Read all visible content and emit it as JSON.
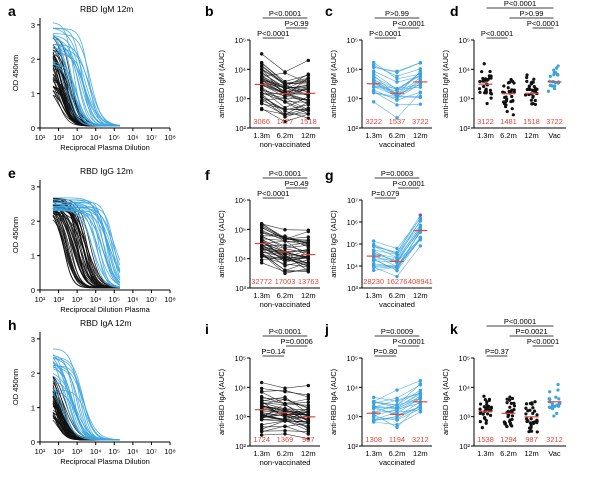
{
  "colors": {
    "non_vaccinated": "#111111",
    "vaccinated": "#3ba3dd",
    "vaccinated_highlight": "#7b4fb7",
    "median_text": "#e0483e"
  },
  "chart_data": [
    {
      "id": "a",
      "panel_label": "a",
      "type": "line",
      "title": "RBD IgM 12m",
      "xlabel": "Reciprocal Plasma Dilution",
      "ylabel": "OD 450nm",
      "xscale": "log",
      "xlim": [
        10,
        100000000
      ],
      "ylim": [
        0,
        3.2
      ],
      "x_ticks": [
        "10¹",
        "10²",
        "10³",
        "10⁴",
        "10⁵",
        "10⁶",
        "10⁷",
        "10⁸"
      ],
      "y_ticks": [
        "0",
        "1",
        "2",
        "3"
      ],
      "curve_groups": [
        {
          "group": "non_vaccinated",
          "count": 42,
          "ec50_range": [
            80,
            600
          ],
          "top_range": [
            1.0,
            2.9
          ]
        },
        {
          "group": "vaccinated",
          "count": 22,
          "ec50_range": [
            250,
            6000
          ],
          "top_range": [
            1.6,
            3.1
          ]
        }
      ]
    },
    {
      "id": "b",
      "panel_label": "b",
      "type": "scatter",
      "ylabel": "anti-RBD IgM (AUC)",
      "yscale": "log",
      "ylim": [
        100,
        100000
      ],
      "y_ticks": [
        "10²",
        "10³",
        "10⁴",
        "10⁵"
      ],
      "categories": [
        "1.3m",
        "6.2m",
        "12m"
      ],
      "group_label": "non-vaccinated",
      "paired": true,
      "color_group": "non_vaccinated",
      "n": 42,
      "medians": [
        3066,
        1477,
        1518
      ],
      "median_labels": [
        "3066",
        "1477",
        "1518"
      ],
      "comparisons": [
        {
          "from": 0,
          "to": 1,
          "label": "P<0.0001"
        },
        {
          "from": 1,
          "to": 2,
          "label": "P>0.99"
        },
        {
          "from": 0,
          "to": 2,
          "label": "P<0.0001"
        }
      ]
    },
    {
      "id": "c",
      "panel_label": "c",
      "type": "scatter",
      "ylabel": "anti-RBD IgM (AUC)",
      "yscale": "log",
      "ylim": [
        100,
        100000
      ],
      "y_ticks": [
        "10²",
        "10³",
        "10⁴",
        "10⁵"
      ],
      "categories": [
        "1.3m",
        "6.2m",
        "12m"
      ],
      "group_label": "vaccinated",
      "paired": true,
      "color_group": "vaccinated",
      "n": 22,
      "medians": [
        3222,
        1537,
        3722
      ],
      "median_labels": [
        "3222",
        "1537",
        "3722"
      ],
      "comparisons": [
        {
          "from": 0,
          "to": 1,
          "label": "P<0.0001"
        },
        {
          "from": 1,
          "to": 2,
          "label": "P<0.0001"
        },
        {
          "from": 0,
          "to": 2,
          "label": "P>0.99"
        }
      ]
    },
    {
      "id": "d",
      "panel_label": "d",
      "type": "scatter",
      "ylabel": "anti-RBD IgM (AUC)",
      "yscale": "log",
      "ylim": [
        100,
        100000
      ],
      "y_ticks": [
        "10²",
        "10³",
        "10⁴",
        "10⁵"
      ],
      "categories": [
        "1.3m",
        "6.2m",
        "12m",
        "Vac"
      ],
      "group_label": "",
      "paired": false,
      "n": 32,
      "category_colors": [
        "non_vaccinated",
        "non_vaccinated",
        "non_vaccinated",
        "vaccinated"
      ],
      "medians": [
        3122,
        1481,
        1518,
        3722
      ],
      "median_labels": [
        "3122",
        "1481",
        "1518",
        "3722"
      ],
      "comparisons": [
        {
          "from": 0,
          "to": 1,
          "label": "P<0.0001"
        },
        {
          "from": 2,
          "to": 3,
          "label": "P<0.0001"
        },
        {
          "from": 1,
          "to": 3,
          "label": "P>0.99"
        },
        {
          "from": 0,
          "to": 3,
          "label": "P<0.0001"
        }
      ]
    },
    {
      "id": "e",
      "panel_label": "e",
      "type": "line",
      "title": "RBD IgG 12m",
      "xlabel": "Reciprocal Dilution Plasma",
      "ylabel": "OD 450nm",
      "xscale": "log",
      "xlim": [
        10,
        100000000
      ],
      "ylim": [
        0,
        3.2
      ],
      "x_ticks": [
        "10¹",
        "10²",
        "10³",
        "10⁴",
        "10⁵",
        "10⁶",
        "10⁷",
        "10⁸"
      ],
      "y_ticks": [
        "0",
        "1",
        "2",
        "3"
      ],
      "curve_groups": [
        {
          "group": "non_vaccinated",
          "count": 42,
          "ec50_range": [
            150,
            5000
          ],
          "top_range": [
            2.2,
            2.7
          ]
        },
        {
          "group": "vaccinated",
          "count": 22,
          "ec50_range": [
            4000,
            150000
          ],
          "top_range": [
            2.3,
            2.7
          ]
        }
      ]
    },
    {
      "id": "f",
      "panel_label": "f",
      "type": "scatter",
      "ylabel": "anti-RBD IgG (AUC)",
      "yscale": "log",
      "ylim": [
        1000,
        1000000
      ],
      "y_ticks": [
        "10³",
        "10⁴",
        "10⁵",
        "10⁶"
      ],
      "categories": [
        "1.3m",
        "6.2m",
        "12m"
      ],
      "group_label": "non-vaccinated",
      "paired": true,
      "color_group": "non_vaccinated",
      "n": 42,
      "medians": [
        32772,
        17003,
        13763
      ],
      "median_labels": [
        "32772",
        "17003",
        "13763"
      ],
      "comparisons": [
        {
          "from": 0,
          "to": 1,
          "label": "P<0.0001"
        },
        {
          "from": 1,
          "to": 2,
          "label": "P=0.49"
        },
        {
          "from": 0,
          "to": 2,
          "label": "P<0.0001"
        }
      ]
    },
    {
      "id": "g",
      "panel_label": "g",
      "type": "scatter",
      "ylabel": "anti-RBD IgG (AUC)",
      "yscale": "log",
      "ylim": [
        1000,
        10000000
      ],
      "y_ticks": [
        "10³",
        "10⁴",
        "10⁵",
        "10⁶",
        "10⁷"
      ],
      "categories": [
        "1.3m",
        "6.2m",
        "12m"
      ],
      "group_label": "vaccinated",
      "paired": true,
      "color_group": "vaccinated",
      "n": 22,
      "medians": [
        28230,
        16276,
        408941
      ],
      "median_labels": [
        "28230",
        "16276",
        "408941"
      ],
      "comparisons": [
        {
          "from": 0,
          "to": 1,
          "label": "P=0.079"
        },
        {
          "from": 1,
          "to": 2,
          "label": "P<0.0001"
        },
        {
          "from": 0,
          "to": 2,
          "label": "P=0.0003"
        }
      ]
    },
    {
      "id": "h",
      "panel_label": "h",
      "type": "line",
      "title": "RBD IgA 12m",
      "xlabel": "Reciprocal Plasma Dilution",
      "ylabel": "OD 450nm",
      "xscale": "log",
      "xlim": [
        10,
        100000000
      ],
      "ylim": [
        0,
        3.2
      ],
      "x_ticks": [
        "10¹",
        "10²",
        "10³",
        "10⁴",
        "10⁵",
        "10⁶",
        "10⁷",
        "10⁸"
      ],
      "y_ticks": [
        "0",
        "1",
        "2",
        "3"
      ],
      "curve_groups": [
        {
          "group": "non_vaccinated",
          "count": 42,
          "ec50_range": [
            60,
            300
          ],
          "top_range": [
            0.8,
            2.4
          ]
        },
        {
          "group": "vaccinated",
          "count": 22,
          "ec50_range": [
            150,
            3500
          ],
          "top_range": [
            1.5,
            2.8
          ]
        }
      ]
    },
    {
      "id": "i",
      "panel_label": "i",
      "type": "scatter",
      "ylabel": "anti-RBD IgA (AUC)",
      "yscale": "log",
      "ylim": [
        100,
        100000
      ],
      "y_ticks": [
        "10²",
        "10³",
        "10⁴",
        "10⁵"
      ],
      "categories": [
        "1.3m",
        "6.2m",
        "12m"
      ],
      "group_label": "non-vaccinated",
      "paired": true,
      "color_group": "non_vaccinated",
      "n": 42,
      "medians": [
        1724,
        1369,
        987
      ],
      "median_labels": [
        "1724",
        "1369",
        "987"
      ],
      "comparisons": [
        {
          "from": 0,
          "to": 1,
          "label": "P=0.14"
        },
        {
          "from": 1,
          "to": 2,
          "label": "P=0.0006"
        },
        {
          "from": 0,
          "to": 2,
          "label": "P<0.0001"
        }
      ]
    },
    {
      "id": "j",
      "panel_label": "j",
      "type": "scatter",
      "ylabel": "anti-RBD IgA (AUC)",
      "yscale": "log",
      "ylim": [
        100,
        100000
      ],
      "y_ticks": [
        "10²",
        "10³",
        "10⁴",
        "10⁵"
      ],
      "categories": [
        "1.3m",
        "6.2m",
        "12m"
      ],
      "group_label": "vaccinated",
      "paired": true,
      "color_group": "vaccinated",
      "n": 22,
      "medians": [
        1308,
        1194,
        3212
      ],
      "median_labels": [
        "1308",
        "1194",
        "3212"
      ],
      "comparisons": [
        {
          "from": 0,
          "to": 1,
          "label": "P=0.80"
        },
        {
          "from": 1,
          "to": 2,
          "label": "P<0.0001"
        },
        {
          "from": 0,
          "to": 2,
          "label": "P=0.0009"
        }
      ]
    },
    {
      "id": "k",
      "panel_label": "k",
      "type": "scatter",
      "ylabel": "anti-RBD IgA (AUC)",
      "yscale": "log",
      "ylim": [
        100,
        100000
      ],
      "y_ticks": [
        "10²",
        "10³",
        "10⁴",
        "10⁵"
      ],
      "categories": [
        "1.3m",
        "6.2m",
        "12m",
        "Vac"
      ],
      "group_label": "",
      "paired": false,
      "n": 32,
      "category_colors": [
        "non_vaccinated",
        "non_vaccinated",
        "non_vaccinated",
        "vaccinated"
      ],
      "medians": [
        1538,
        1294,
        987,
        3212
      ],
      "median_labels": [
        "1538",
        "1294",
        "987",
        "3212"
      ],
      "comparisons": [
        {
          "from": 0,
          "to": 1,
          "label": "P=0.37"
        },
        {
          "from": 2,
          "to": 3,
          "label": "P<0.0001"
        },
        {
          "from": 1,
          "to": 3,
          "label": "P=0.0021"
        },
        {
          "from": 0,
          "to": 3,
          "label": "P<0.0001"
        }
      ]
    }
  ]
}
